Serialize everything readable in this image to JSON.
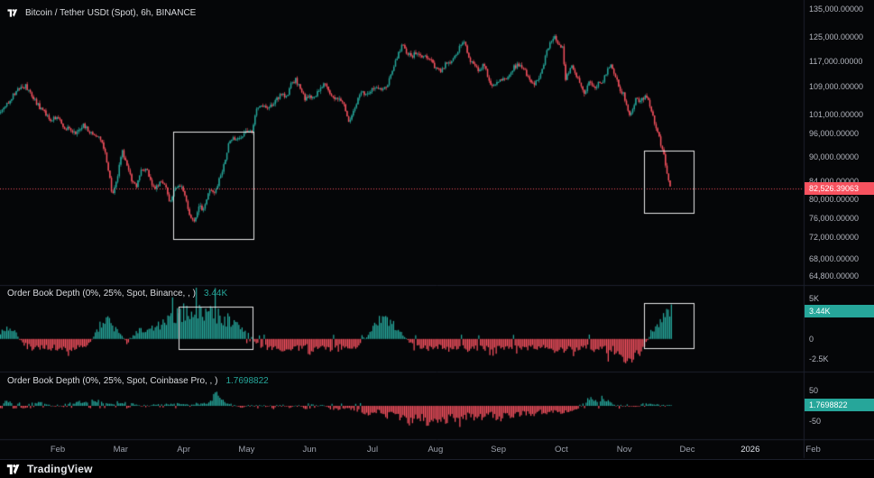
{
  "app": {
    "footer_label": "TradingView"
  },
  "time_axis": {
    "labels": [
      "Feb",
      "Mar",
      "Apr",
      "May",
      "Jun",
      "Jul",
      "Aug",
      "Sep",
      "Oct",
      "Nov",
      "Dec",
      "2026",
      "Feb"
    ]
  },
  "chart_data": [
    {
      "type": "candlestick",
      "title": "Bitcoin / Tether USDt (Spot), 6h, BINANCE",
      "scale": "log",
      "up_color": "#26a69a",
      "down_color": "#f7525f",
      "y_range": [
        63200,
        138500
      ],
      "x_end": 0.835,
      "last_price": 82526.39063,
      "last_price_label": "82,526.39063",
      "y_axis_labels": [
        "135,000.00000",
        "125,000.00000",
        "117,000.00000",
        "109,000.00000",
        "101,000.00000",
        "96,000.00000",
        "90,000.00000",
        "84,000.00000",
        "80,000.00000",
        "76,000.00000",
        "72,000.00000",
        "68,000.00000",
        "64,800.00000"
      ],
      "series": [
        [
          0.0,
          101500
        ],
        [
          0.008,
          104000
        ],
        [
          0.016,
          106500
        ],
        [
          0.024,
          108500
        ],
        [
          0.032,
          109300
        ],
        [
          0.04,
          106000
        ],
        [
          0.048,
          103500
        ],
        [
          0.056,
          101500
        ],
        [
          0.064,
          99500
        ],
        [
          0.072,
          100500
        ],
        [
          0.08,
          97500
        ],
        [
          0.088,
          96800
        ],
        [
          0.096,
          96200
        ],
        [
          0.104,
          98200
        ],
        [
          0.112,
          96000
        ],
        [
          0.12,
          95500
        ],
        [
          0.128,
          93500
        ],
        [
          0.134,
          88000
        ],
        [
          0.14,
          80500
        ],
        [
          0.146,
          84500
        ],
        [
          0.152,
          91500
        ],
        [
          0.158,
          87500
        ],
        [
          0.164,
          84500
        ],
        [
          0.17,
          83000
        ],
        [
          0.176,
          86500
        ],
        [
          0.182,
          87000
        ],
        [
          0.188,
          84000
        ],
        [
          0.194,
          82500
        ],
        [
          0.2,
          84000
        ],
        [
          0.206,
          83000
        ],
        [
          0.212,
          79000
        ],
        [
          0.218,
          82500
        ],
        [
          0.224,
          83500
        ],
        [
          0.23,
          81000
        ],
        [
          0.236,
          76500
        ],
        [
          0.242,
          74800
        ],
        [
          0.248,
          78500
        ],
        [
          0.254,
          77500
        ],
        [
          0.26,
          82500
        ],
        [
          0.266,
          81000
        ],
        [
          0.272,
          84000
        ],
        [
          0.278,
          87500
        ],
        [
          0.284,
          93000
        ],
        [
          0.29,
          94500
        ],
        [
          0.296,
          94000
        ],
        [
          0.302,
          95500
        ],
        [
          0.308,
          97000
        ],
        [
          0.314,
          96200
        ],
        [
          0.32,
          103200
        ],
        [
          0.326,
          104000
        ],
        [
          0.332,
          102800
        ],
        [
          0.338,
          103600
        ],
        [
          0.344,
          105500
        ],
        [
          0.35,
          107000
        ],
        [
          0.356,
          105500
        ],
        [
          0.362,
          109500
        ],
        [
          0.368,
          111300
        ],
        [
          0.374,
          108500
        ],
        [
          0.38,
          105200
        ],
        [
          0.386,
          106300
        ],
        [
          0.392,
          105600
        ],
        [
          0.398,
          108800
        ],
        [
          0.404,
          110200
        ],
        [
          0.41,
          107500
        ],
        [
          0.416,
          105200
        ],
        [
          0.422,
          105800
        ],
        [
          0.428,
          103500
        ],
        [
          0.434,
          99500
        ],
        [
          0.44,
          101800
        ],
        [
          0.446,
          105800
        ],
        [
          0.452,
          107400
        ],
        [
          0.458,
          107100
        ],
        [
          0.464,
          108900
        ],
        [
          0.47,
          108100
        ],
        [
          0.476,
          108400
        ],
        [
          0.482,
          109600
        ],
        [
          0.488,
          113500
        ],
        [
          0.494,
          118200
        ],
        [
          0.5,
          122300
        ],
        [
          0.506,
          119800
        ],
        [
          0.512,
          118300
        ],
        [
          0.518,
          119900
        ],
        [
          0.524,
          118100
        ],
        [
          0.53,
          118600
        ],
        [
          0.536,
          117600
        ],
        [
          0.542,
          114600
        ],
        [
          0.548,
          113800
        ],
        [
          0.554,
          115800
        ],
        [
          0.56,
          117000
        ],
        [
          0.566,
          118900
        ],
        [
          0.572,
          121500
        ],
        [
          0.578,
          123800
        ],
        [
          0.584,
          117900
        ],
        [
          0.59,
          116400
        ],
        [
          0.596,
          113200
        ],
        [
          0.602,
          116600
        ],
        [
          0.608,
          111500
        ],
        [
          0.614,
          109000
        ],
        [
          0.62,
          110800
        ],
        [
          0.626,
          111400
        ],
        [
          0.632,
          112300
        ],
        [
          0.638,
          114600
        ],
        [
          0.644,
          115800
        ],
        [
          0.65,
          115400
        ],
        [
          0.656,
          112600
        ],
        [
          0.662,
          109600
        ],
        [
          0.668,
          110400
        ],
        [
          0.674,
          114100
        ],
        [
          0.68,
          119500
        ],
        [
          0.686,
          123800
        ],
        [
          0.69,
          125800
        ],
        [
          0.694,
          123400
        ],
        [
          0.7,
          121400
        ],
        [
          0.704,
          111500
        ],
        [
          0.708,
          113800
        ],
        [
          0.712,
          115400
        ],
        [
          0.716,
          112900
        ],
        [
          0.72,
          111100
        ],
        [
          0.724,
          108600
        ],
        [
          0.728,
          107200
        ],
        [
          0.732,
          110600
        ],
        [
          0.736,
          109300
        ],
        [
          0.74,
          108600
        ],
        [
          0.744,
          110400
        ],
        [
          0.748,
          109900
        ],
        [
          0.752,
          111900
        ],
        [
          0.756,
          113900
        ],
        [
          0.76,
          115400
        ],
        [
          0.764,
          112900
        ],
        [
          0.768,
          110400
        ],
        [
          0.772,
          108100
        ],
        [
          0.776,
          106900
        ],
        [
          0.78,
          103900
        ],
        [
          0.784,
          100900
        ],
        [
          0.788,
          103400
        ],
        [
          0.792,
          105900
        ],
        [
          0.796,
          104400
        ],
        [
          0.8,
          105900
        ],
        [
          0.804,
          106600
        ],
        [
          0.808,
          104100
        ],
        [
          0.812,
          101100
        ],
        [
          0.816,
          97600
        ],
        [
          0.82,
          95100
        ],
        [
          0.824,
          92100
        ],
        [
          0.828,
          88600
        ],
        [
          0.832,
          84600
        ],
        [
          0.835,
          82526
        ]
      ],
      "annotations": [
        {
          "x0": 0.216,
          "x1": 0.316,
          "y0": 96500,
          "y1": 71800
        },
        {
          "x0": 0.801,
          "x1": 0.863,
          "y0": 91500,
          "y1": 77000
        }
      ]
    },
    {
      "type": "histogram",
      "title": "Order Book Depth (0%, 25%, Spot, Binance, , )",
      "up_color": "#26a69a",
      "down_color": "#f7525f",
      "y_range": [
        -4.0,
        6.5
      ],
      "x_end": 0.835,
      "last_value": 3.44,
      "last_value_label": "3.44K",
      "y_axis_labels": [
        {
          "label": "5K",
          "value": 5
        },
        {
          "label": "0",
          "value": 0
        },
        {
          "label": "-2.5K",
          "value": -2.5
        }
      ],
      "series": [
        [
          0.0,
          0.9
        ],
        [
          0.01,
          1.4
        ],
        [
          0.02,
          0.6
        ],
        [
          0.03,
          -0.7
        ],
        [
          0.04,
          -1.1
        ],
        [
          0.05,
          -1.2
        ],
        [
          0.06,
          -1.0
        ],
        [
          0.07,
          -1.2
        ],
        [
          0.08,
          -1.1
        ],
        [
          0.09,
          -1.3
        ],
        [
          0.1,
          -0.9
        ],
        [
          0.11,
          -0.6
        ],
        [
          0.118,
          0.7
        ],
        [
          0.126,
          1.9
        ],
        [
          0.134,
          2.3
        ],
        [
          0.142,
          1.3
        ],
        [
          0.15,
          0.6
        ],
        [
          0.158,
          -0.6
        ],
        [
          0.166,
          0.5
        ],
        [
          0.174,
          1.1
        ],
        [
          0.182,
          0.9
        ],
        [
          0.19,
          1.4
        ],
        [
          0.2,
          1.7
        ],
        [
          0.21,
          2.3
        ],
        [
          0.22,
          2.9
        ],
        [
          0.23,
          3.3
        ],
        [
          0.24,
          3.6
        ],
        [
          0.25,
          3.1
        ],
        [
          0.26,
          3.4
        ],
        [
          0.27,
          2.9
        ],
        [
          0.28,
          2.3
        ],
        [
          0.29,
          1.9
        ],
        [
          0.3,
          1.3
        ],
        [
          0.31,
          0.5
        ],
        [
          0.32,
          -0.7
        ],
        [
          0.33,
          -1.1
        ],
        [
          0.34,
          -1.0
        ],
        [
          0.35,
          -1.3
        ],
        [
          0.36,
          -1.1
        ],
        [
          0.37,
          -1.2
        ],
        [
          0.38,
          -0.9
        ],
        [
          0.39,
          -1.2
        ],
        [
          0.4,
          -1.0
        ],
        [
          0.41,
          -1.2
        ],
        [
          0.42,
          -1.1
        ],
        [
          0.43,
          -0.8
        ],
        [
          0.44,
          -1.1
        ],
        [
          0.45,
          -0.5
        ],
        [
          0.46,
          0.7
        ],
        [
          0.468,
          1.9
        ],
        [
          0.476,
          2.4
        ],
        [
          0.484,
          2.1
        ],
        [
          0.492,
          1.4
        ],
        [
          0.5,
          0.7
        ],
        [
          0.51,
          -0.6
        ],
        [
          0.52,
          -1.0
        ],
        [
          0.53,
          -1.2
        ],
        [
          0.54,
          -0.9
        ],
        [
          0.55,
          -1.1
        ],
        [
          0.56,
          -1.2
        ],
        [
          0.57,
          -1.0
        ],
        [
          0.58,
          -1.2
        ],
        [
          0.59,
          -0.9
        ],
        [
          0.6,
          -1.1
        ],
        [
          0.61,
          -1.0
        ],
        [
          0.62,
          -1.2
        ],
        [
          0.63,
          -0.9
        ],
        [
          0.64,
          -1.1
        ],
        [
          0.65,
          -1.0
        ],
        [
          0.66,
          -1.2
        ],
        [
          0.67,
          -1.1
        ],
        [
          0.68,
          -0.9
        ],
        [
          0.69,
          -1.2
        ],
        [
          0.7,
          -1.3
        ],
        [
          0.71,
          -1.1
        ],
        [
          0.72,
          -1.2
        ],
        [
          0.73,
          -1.0
        ],
        [
          0.74,
          -1.2
        ],
        [
          0.75,
          -1.4
        ],
        [
          0.76,
          -1.2
        ],
        [
          0.77,
          -1.7
        ],
        [
          0.778,
          -2.3
        ],
        [
          0.786,
          -2.7
        ],
        [
          0.792,
          -2.0
        ],
        [
          0.798,
          -1.2
        ],
        [
          0.804,
          -0.4
        ],
        [
          0.81,
          0.8
        ],
        [
          0.816,
          1.6
        ],
        [
          0.822,
          2.4
        ],
        [
          0.828,
          3.1
        ],
        [
          0.832,
          3.7
        ],
        [
          0.835,
          3.44
        ]
      ],
      "annotations": [
        {
          "x0": 0.2225,
          "x1": 0.3146,
          "y0": 4.0,
          "y1": -1.15
        },
        {
          "x0": 0.801,
          "x1": 0.863,
          "y0": 4.4,
          "y1": -1.15
        }
      ]
    },
    {
      "type": "histogram",
      "title": "Order Book Depth (0%, 25%, Spot, Coinbase Pro, , )",
      "up_color": "#26a69a",
      "down_color": "#f7525f",
      "y_range": [
        -110,
        110
      ],
      "x_end": 0.835,
      "last_value": 1.7698822,
      "last_value_label": "1.7698822",
      "y_axis_labels": [
        {
          "label": "50",
          "value": 50
        },
        {
          "label": "-50",
          "value": -50
        }
      ],
      "series": [
        [
          0.0,
          10
        ],
        [
          0.01,
          15
        ],
        [
          0.02,
          8
        ],
        [
          0.03,
          12
        ],
        [
          0.04,
          7
        ],
        [
          0.05,
          11
        ],
        [
          0.06,
          5
        ],
        [
          0.07,
          -4
        ],
        [
          0.08,
          6
        ],
        [
          0.09,
          9
        ],
        [
          0.1,
          13
        ],
        [
          0.11,
          8
        ],
        [
          0.12,
          16
        ],
        [
          0.13,
          10
        ],
        [
          0.14,
          6
        ],
        [
          0.15,
          12
        ],
        [
          0.16,
          8
        ],
        [
          0.17,
          4
        ],
        [
          0.18,
          -5
        ],
        [
          0.19,
          4
        ],
        [
          0.2,
          7
        ],
        [
          0.21,
          5
        ],
        [
          0.22,
          9
        ],
        [
          0.23,
          5
        ],
        [
          0.24,
          4
        ],
        [
          0.25,
          7
        ],
        [
          0.26,
          12
        ],
        [
          0.268,
          44
        ],
        [
          0.274,
          22
        ],
        [
          0.28,
          9
        ],
        [
          0.29,
          4
        ],
        [
          0.3,
          -6
        ],
        [
          0.31,
          4
        ],
        [
          0.32,
          -7
        ],
        [
          0.33,
          5
        ],
        [
          0.34,
          -9
        ],
        [
          0.35,
          6
        ],
        [
          0.36,
          -5
        ],
        [
          0.37,
          4
        ],
        [
          0.38,
          -11
        ],
        [
          0.39,
          -6
        ],
        [
          0.4,
          5
        ],
        [
          0.41,
          -9
        ],
        [
          0.42,
          -13
        ],
        [
          0.43,
          -7
        ],
        [
          0.44,
          -12
        ],
        [
          0.45,
          -19
        ],
        [
          0.46,
          -27
        ],
        [
          0.47,
          -16
        ],
        [
          0.48,
          -32
        ],
        [
          0.49,
          -24
        ],
        [
          0.5,
          -38
        ],
        [
          0.51,
          -48
        ],
        [
          0.52,
          -32
        ],
        [
          0.53,
          -52
        ],
        [
          0.54,
          -38
        ],
        [
          0.55,
          -55
        ],
        [
          0.56,
          -42
        ],
        [
          0.57,
          -48
        ],
        [
          0.58,
          -33
        ],
        [
          0.59,
          -45
        ],
        [
          0.6,
          -38
        ],
        [
          0.61,
          -30
        ],
        [
          0.62,
          -41
        ],
        [
          0.63,
          -27
        ],
        [
          0.64,
          -33
        ],
        [
          0.65,
          -22
        ],
        [
          0.66,
          -30
        ],
        [
          0.67,
          -19
        ],
        [
          0.68,
          -26
        ],
        [
          0.69,
          -16
        ],
        [
          0.7,
          -22
        ],
        [
          0.71,
          -13
        ],
        [
          0.72,
          -9
        ],
        [
          0.728,
          16
        ],
        [
          0.736,
          26
        ],
        [
          0.744,
          17
        ],
        [
          0.752,
          22
        ],
        [
          0.76,
          10
        ],
        [
          0.77,
          -7
        ],
        [
          0.78,
          6
        ],
        [
          0.79,
          -5
        ],
        [
          0.8,
          7
        ],
        [
          0.81,
          5
        ],
        [
          0.82,
          4
        ],
        [
          0.83,
          3
        ],
        [
          0.835,
          1.77
        ]
      ],
      "annotations": []
    }
  ]
}
